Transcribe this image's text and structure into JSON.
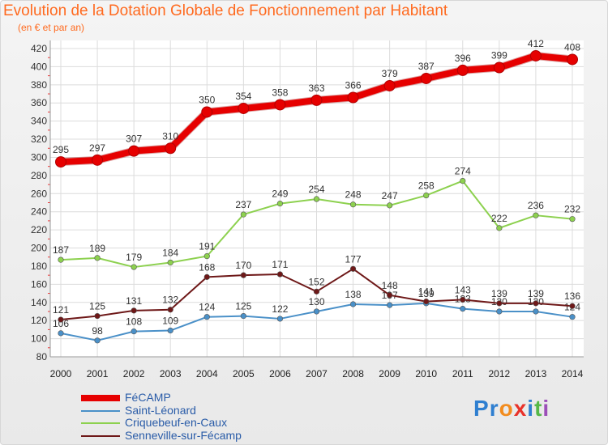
{
  "title": "Evolution de la Dotation Globale de Fonctionnement par Habitant",
  "subtitle": "(en € et par an)",
  "brand": {
    "text": "Proxiti",
    "letters": [
      "P",
      "r",
      "o",
      "x",
      "i",
      "t",
      "i"
    ],
    "colors": [
      "#2f7fd0",
      "#2f7fd0",
      "#f28c1e",
      "#e8322a",
      "#2f7fd0",
      "#56b848",
      "#9c4fb8"
    ]
  },
  "chart_data": {
    "type": "line",
    "x": [
      2000,
      2001,
      2002,
      2003,
      2004,
      2005,
      2006,
      2007,
      2008,
      2009,
      2010,
      2011,
      2012,
      2013,
      2014
    ],
    "ylim": [
      80,
      420
    ],
    "yticks": [
      80,
      100,
      120,
      140,
      160,
      180,
      200,
      220,
      240,
      260,
      280,
      300,
      320,
      340,
      360,
      380,
      400,
      420
    ],
    "grid": true,
    "legend_position": "bottom-left",
    "series": [
      {
        "name": "FéCAMP",
        "color": "#e60000",
        "emphasis": true,
        "values": [
          295,
          297,
          307,
          310,
          350,
          354,
          358,
          363,
          366,
          379,
          387,
          396,
          399,
          412,
          408
        ]
      },
      {
        "name": "Saint-Léonard",
        "color": "#4a90c8",
        "values": [
          106,
          98,
          108,
          109,
          124,
          125,
          122,
          130,
          138,
          137,
          139,
          133,
          130,
          130,
          124
        ]
      },
      {
        "name": "Criquebeuf-en-Caux",
        "color": "#8dd14f",
        "values": [
          187,
          189,
          179,
          184,
          191,
          237,
          249,
          254,
          248,
          247,
          258,
          274,
          222,
          236,
          232
        ]
      },
      {
        "name": "Senneville-sur-Fécamp",
        "color": "#6e1818",
        "values": [
          121,
          125,
          131,
          132,
          168,
          170,
          171,
          152,
          177,
          148,
          141,
          143,
          139,
          139,
          136
        ]
      }
    ]
  }
}
